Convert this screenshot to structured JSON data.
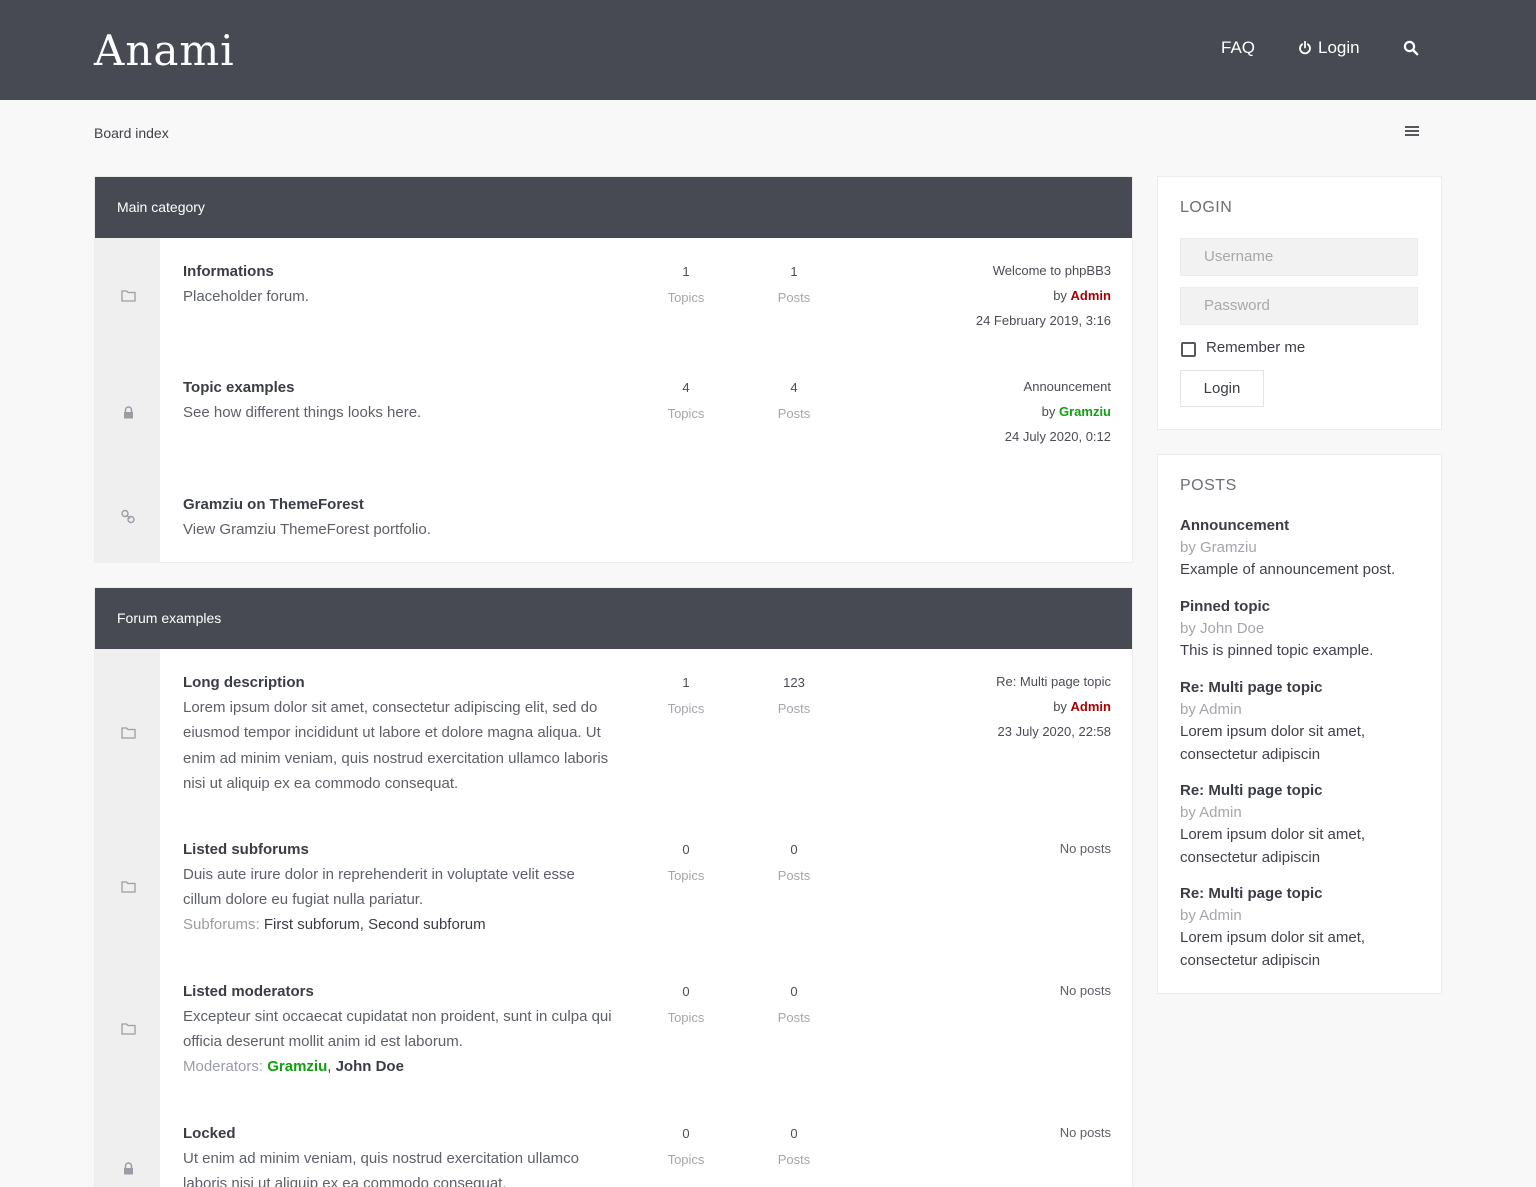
{
  "header": {
    "logo": "Anami",
    "nav": {
      "faq": "FAQ",
      "login": "Login"
    },
    "icons": [
      "power-icon",
      "search-icon"
    ]
  },
  "breadcrumb": {
    "board_index": "Board index"
  },
  "categories": [
    {
      "title": "Main category",
      "forums": [
        {
          "title": "Informations",
          "desc": "Placeholder forum.",
          "topics": "1",
          "topics_label": "Topics",
          "posts": "1",
          "posts_label": "Posts",
          "last_title": "Welcome to phpBB3",
          "last_by": "by",
          "last_author": "Admin",
          "last_date": "24 February 2019, 3:16",
          "icon": "folder-icon"
        },
        {
          "title": "Topic examples",
          "desc": "See how different things looks here.",
          "topics": "4",
          "topics_label": "Topics",
          "posts": "4",
          "posts_label": "Posts",
          "last_title": "Announcement",
          "last_by": "by",
          "last_author": "Gramziu",
          "last_date": "24 July 2020, 0:12",
          "icon": "lock-icon"
        },
        {
          "title": "Gramziu on ThemeForest",
          "desc": "View Gramziu ThemeForest portfolio.",
          "icon": "link-icon"
        }
      ]
    },
    {
      "title": "Forum examples",
      "forums": [
        {
          "title": "Long description",
          "desc": "Lorem ipsum dolor sit amet, consectetur adipiscing elit, sed do eiusmod tempor incididunt ut labore et dolore magna aliqua. Ut enim ad minim veniam, quis nostrud exercitation ullamco laboris nisi ut aliquip ex ea commodo consequat.",
          "topics": "1",
          "topics_label": "Topics",
          "posts": "123",
          "posts_label": "Posts",
          "last_title": "Re: Multi page topic",
          "last_by": "by",
          "last_author": "Admin",
          "last_date": "23 July 2020, 22:58",
          "icon": "folder-icon"
        },
        {
          "title": "Listed subforums",
          "desc": "Duis aute irure dolor in reprehenderit in voluptate velit esse cillum dolore eu fugiat nulla pariatur.",
          "extra_label": "Subforums:",
          "extra_items": [
            "First subforum",
            "Second subforum"
          ],
          "topics": "0",
          "topics_label": "Topics",
          "posts": "0",
          "posts_label": "Posts",
          "no_posts": "No posts",
          "icon": "folder-icon"
        },
        {
          "title": "Listed moderators",
          "desc": "Excepteur sint occaecat cupidatat non proident, sunt in culpa qui officia deserunt mollit anim id est laborum.",
          "extra_label": "Moderators:",
          "extra_items": [
            "Gramziu",
            "John Doe"
          ],
          "topics": "0",
          "topics_label": "Topics",
          "posts": "0",
          "posts_label": "Posts",
          "no_posts": "No posts",
          "icon": "folder-icon"
        },
        {
          "title": "Locked",
          "desc": "Ut enim ad minim veniam, quis nostrud exercitation ullamco laboris nisi ut aliquip ex ea commodo consequat.",
          "topics": "0",
          "topics_label": "Topics",
          "posts": "0",
          "posts_label": "Posts",
          "no_posts": "No posts",
          "icon": "lock-icon"
        }
      ]
    }
  ],
  "login_panel": {
    "title": "LOGIN",
    "username_placeholder": "Username",
    "password_placeholder": "Password",
    "remember": "Remember me",
    "button": "Login"
  },
  "posts_panel": {
    "title": "POSTS",
    "items": [
      {
        "title": "Announcement",
        "by": "by Gramziu",
        "text": "Example of announcement post."
      },
      {
        "title": "Pinned topic",
        "by": "by John Doe",
        "text": "This is pinned topic example."
      },
      {
        "title": "Re: Multi page topic",
        "by": "by Admin",
        "text": "Lorem ipsum dolor sit amet, consectetur adipiscin"
      },
      {
        "title": "Re: Multi page topic",
        "by": "by Admin",
        "text": "Lorem ipsum dolor sit amet, consectetur adipiscin"
      },
      {
        "title": "Re: Multi page topic",
        "by": "by Admin",
        "text": "Lorem ipsum dolor sit amet, consectetur adipiscin"
      }
    ]
  },
  "colors": {
    "header_bg": "#474a52",
    "admin": "#aa0000",
    "gramziu": "#10a010"
  }
}
